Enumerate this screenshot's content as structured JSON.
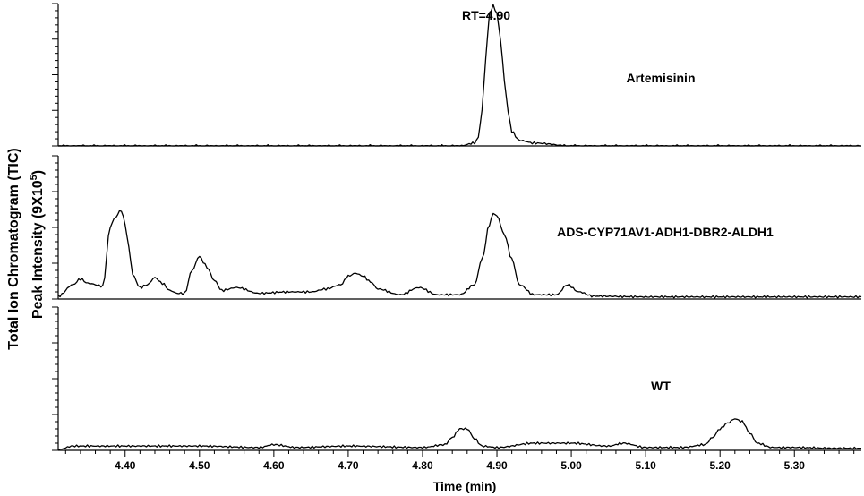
{
  "chart_data": {
    "type": "line",
    "xlabel": "Time (min)",
    "ylabel_line1": "Total Ion Chromatogram (TIC)",
    "ylabel_line2_base": "Peak Intensity (9X10",
    "ylabel_line2_sup": "5",
    "ylabel_line2_end": ")",
    "xlim": [
      4.31,
      5.39
    ],
    "x_ticks": [
      4.4,
      4.5,
      4.6,
      4.7,
      4.8,
      4.9,
      5.0,
      5.1,
      5.2,
      5.3
    ],
    "x_tick_labels": [
      "4.40",
      "4.50",
      "4.60",
      "4.70",
      "4.80",
      "4.90",
      "5.00",
      "5.10",
      "5.20",
      "5.30"
    ],
    "grid": false,
    "legend": "none",
    "panels": [
      {
        "name": "Artemisinin",
        "label": "Artemisinin",
        "annotation": "RT=4.90",
        "ylim": [
          0,
          1
        ],
        "x": [
          4.31,
          4.85,
          4.87,
          4.875,
          4.88,
          4.885,
          4.89,
          4.895,
          4.9,
          4.905,
          4.91,
          4.915,
          4.92,
          4.93,
          4.95,
          5.0,
          5.39
        ],
        "y": [
          0.0,
          0.0,
          0.02,
          0.06,
          0.25,
          0.62,
          0.93,
          0.985,
          0.93,
          0.74,
          0.46,
          0.24,
          0.1,
          0.04,
          0.02,
          0.0,
          0.0
        ]
      },
      {
        "name": "ADS-CYP71AV1-ADH1-DBR2-ALDH1",
        "label": "ADS-CYP71AV1-ADH1-DBR2-ALDH1",
        "ylim": [
          0,
          1
        ],
        "x": [
          4.31,
          4.33,
          4.34,
          4.35,
          4.37,
          4.38,
          4.385,
          4.395,
          4.4,
          4.405,
          4.41,
          4.42,
          4.43,
          4.44,
          4.45,
          4.46,
          4.47,
          4.48,
          4.49,
          4.5,
          4.505,
          4.51,
          4.52,
          4.53,
          4.55,
          4.58,
          4.62,
          4.65,
          4.67,
          4.69,
          4.7,
          4.71,
          4.72,
          4.73,
          4.74,
          4.77,
          4.795,
          4.82,
          4.85,
          4.87,
          4.88,
          4.89,
          4.895,
          4.9,
          4.91,
          4.92,
          4.93,
          4.95,
          4.98,
          4.995,
          5.01,
          5.03,
          5.1,
          5.2,
          5.3,
          5.39
        ],
        "y": [
          0.02,
          0.1,
          0.14,
          0.11,
          0.09,
          0.5,
          0.56,
          0.62,
          0.52,
          0.36,
          0.17,
          0.08,
          0.1,
          0.15,
          0.11,
          0.06,
          0.04,
          0.04,
          0.2,
          0.3,
          0.26,
          0.22,
          0.13,
          0.06,
          0.08,
          0.04,
          0.05,
          0.05,
          0.07,
          0.1,
          0.16,
          0.18,
          0.16,
          0.12,
          0.07,
          0.03,
          0.08,
          0.03,
          0.03,
          0.1,
          0.28,
          0.52,
          0.6,
          0.58,
          0.45,
          0.28,
          0.1,
          0.03,
          0.03,
          0.1,
          0.05,
          0.02,
          0.015,
          0.015,
          0.015,
          0.015
        ]
      },
      {
        "name": "WT",
        "label": "WT",
        "ylim": [
          0,
          1
        ],
        "x": [
          4.31,
          4.33,
          4.4,
          4.5,
          4.58,
          4.6,
          4.63,
          4.7,
          4.8,
          4.83,
          4.84,
          4.85,
          4.86,
          4.87,
          4.88,
          4.9,
          4.95,
          5.0,
          5.05,
          5.07,
          5.1,
          5.15,
          5.18,
          5.19,
          5.2,
          5.21,
          5.22,
          5.23,
          5.24,
          5.25,
          5.27,
          5.3,
          5.35,
          5.39
        ],
        "y": [
          0.005,
          0.03,
          0.03,
          0.03,
          0.02,
          0.04,
          0.02,
          0.03,
          0.02,
          0.04,
          0.09,
          0.15,
          0.15,
          0.08,
          0.03,
          0.02,
          0.05,
          0.05,
          0.03,
          0.05,
          0.02,
          0.02,
          0.04,
          0.09,
          0.15,
          0.19,
          0.22,
          0.2,
          0.12,
          0.05,
          0.02,
          0.02,
          0.015,
          0.015
        ]
      }
    ]
  }
}
